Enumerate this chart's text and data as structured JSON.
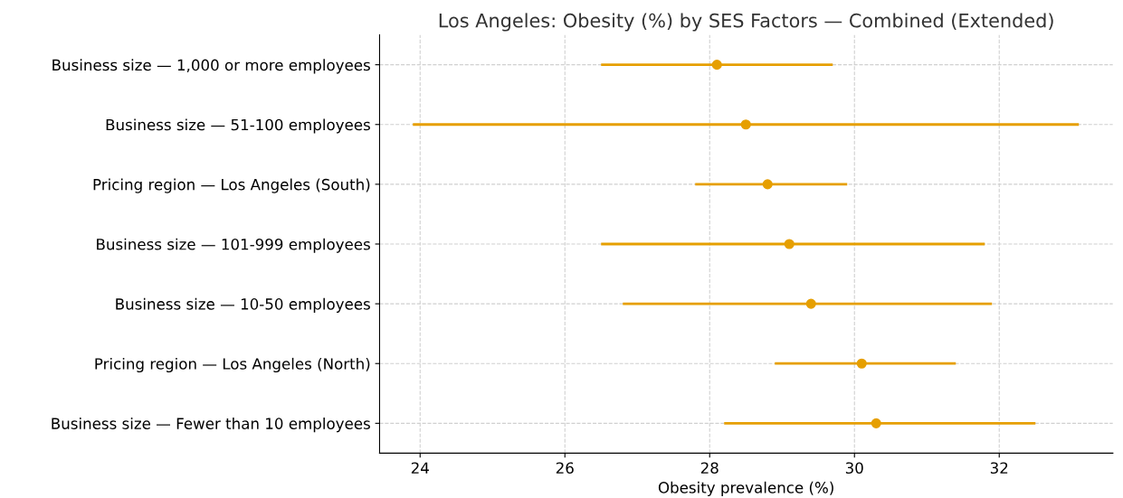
{
  "chart_data": {
    "type": "scatter",
    "orientation": "horizontal",
    "title": "Los Angeles: Obesity (%) by SES Factors — Combined (Extended)",
    "xlabel": "Obesity prevalence (%)",
    "categories": [
      "Business size — 1,000 or more employees",
      "Business size — 51-100 employees",
      "Pricing region — Los Angeles (South)",
      "Business size — 101-999 employees",
      "Business size — 10-50 employees",
      "Pricing region — Los Angeles (North)",
      "Business size — Fewer than 10 employees"
    ],
    "series": [
      {
        "color": "#e69f00",
        "values": [
          28.1,
          28.5,
          28.8,
          29.1,
          29.4,
          30.1,
          30.3
        ],
        "errors": [
          [
            26.5,
            29.7
          ],
          [
            23.9,
            33.1
          ],
          [
            27.8,
            29.9
          ],
          [
            26.5,
            31.8
          ],
          [
            26.8,
            31.9
          ],
          [
            28.9,
            31.4
          ],
          [
            28.2,
            32.5
          ]
        ]
      }
    ],
    "xlim": [
      23.44,
      33.57
    ],
    "xticks": [
      24,
      26,
      28,
      30,
      32
    ],
    "grid": true,
    "marker": "circle"
  }
}
